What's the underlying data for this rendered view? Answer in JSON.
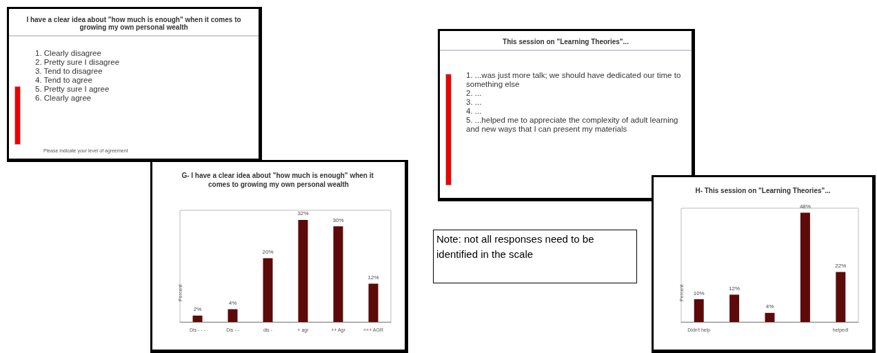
{
  "chart_data": [
    {
      "type": "other",
      "title": "I have a clear idea about \"how much is enough\" when it comes to growing my own personal wealth",
      "annotations": [
        "1.  Clearly disagree",
        "2.  Pretty sure I disagree",
        "3.  Tend to disagree",
        "4.  Tend to agree",
        "5.  Pretty sure I agree",
        "6.  Clearly agree",
        "Please indicate your level of agreement"
      ]
    },
    {
      "type": "bar",
      "title": "G- I have a clear idea about \"how much is enough\" when it comes to growing my own personal wealth",
      "ylabel": "Percent",
      "categories": [
        "Dis - - -",
        "Dis - -",
        "dis -",
        "+ agr",
        "++ Agr",
        "+++ AGR"
      ],
      "values": [
        2,
        4,
        20,
        32,
        30,
        12
      ],
      "value_labels": [
        "2%",
        "4%",
        "20%",
        "32%",
        "30%",
        "12%"
      ],
      "color": "#5c0a0a"
    },
    {
      "type": "other",
      "title": "This session on \"Learning Theories\"...",
      "annotations": [
        "1.  ...was just more talk; we should have dedicated our time to something else",
        "2.  ...",
        "3.  ...",
        "4.  ...",
        "5.  ...helped me to appreciate the complexity of adult learning and new ways that I can present my materials"
      ]
    },
    {
      "type": "other",
      "annotations": [
        "Note:  not all responses need to be identified in the scale"
      ]
    },
    {
      "type": "bar",
      "title": "H- This session on \"Learning Theories\"...",
      "ylabel": "Percent",
      "categories": [
        "Didn't help",
        null,
        null,
        null,
        "helped!"
      ],
      "values": [
        10,
        12,
        4,
        48,
        22
      ],
      "value_labels": [
        "10%",
        "12%",
        "4%",
        "48%",
        "22%"
      ],
      "color": "#5c0a0a"
    }
  ]
}
